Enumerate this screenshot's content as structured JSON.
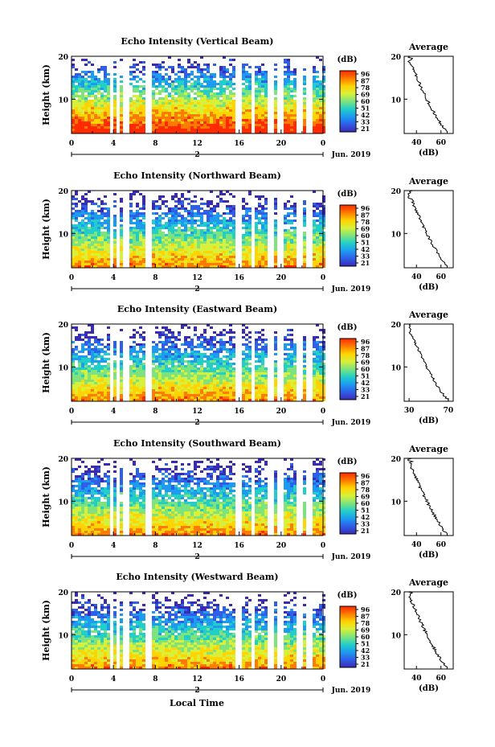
{
  "figure": {
    "shared_xlabel": "Local Time",
    "date_label": "Jun. 2019",
    "day_label": "2",
    "colorbar_unit": "(dB)",
    "avg_title": "Average",
    "avg_xlabel": "(dB)",
    "ylabel": "Height (km)"
  },
  "colorbar": {
    "ticks": [
      "96",
      "87",
      "78",
      "69",
      "60",
      "51",
      "42",
      "33",
      "21"
    ],
    "colors": [
      "#ff2a00",
      "#ff7a00",
      "#ffd400",
      "#d8f03a",
      "#7ee37d",
      "#22cfc8",
      "#1d9bf0",
      "#2f5ee8",
      "#3a2bb7"
    ]
  },
  "chart_data": [
    {
      "type": "heatmap",
      "title": "Echo Intensity (Vertical Beam)",
      "xlabel": "",
      "ylabel": "Height (km)",
      "x_ticks": [
        "0",
        "4",
        "8",
        "12",
        "16",
        "20",
        "0"
      ],
      "y_ticks": [
        "20",
        "10"
      ],
      "xlim": [
        0,
        24
      ],
      "ylim": [
        2,
        20
      ],
      "colorbar_ticks": [
        "96",
        "87",
        "78",
        "69",
        "60",
        "51",
        "42",
        "33",
        "21"
      ],
      "average_profile": {
        "x_ticks": [
          "40",
          "60"
        ],
        "xlim": [
          30,
          70
        ],
        "y_ticks": [
          "20",
          "10"
        ],
        "ylim": [
          2,
          20
        ]
      }
    },
    {
      "type": "heatmap",
      "title": "Echo Intensity (Northward Beam)",
      "xlabel": "",
      "ylabel": "Height (km)",
      "x_ticks": [
        "0",
        "4",
        "8",
        "12",
        "16",
        "20",
        "0"
      ],
      "y_ticks": [
        "20",
        "10"
      ],
      "xlim": [
        0,
        24
      ],
      "ylim": [
        2,
        20
      ],
      "colorbar_ticks": [
        "96",
        "87",
        "78",
        "69",
        "60",
        "51",
        "42",
        "33",
        "21"
      ],
      "average_profile": {
        "x_ticks": [
          "40",
          "60"
        ],
        "xlim": [
          30,
          70
        ],
        "y_ticks": [
          "20",
          "10"
        ],
        "ylim": [
          2,
          20
        ]
      }
    },
    {
      "type": "heatmap",
      "title": "Echo Intensity (Eastward Beam)",
      "xlabel": "",
      "ylabel": "Height (km)",
      "x_ticks": [
        "0",
        "4",
        "8",
        "12",
        "16",
        "20",
        "0"
      ],
      "y_ticks": [
        "20",
        "10"
      ],
      "xlim": [
        0,
        24
      ],
      "ylim": [
        2,
        20
      ],
      "colorbar_ticks": [
        "96",
        "87",
        "78",
        "69",
        "60",
        "51",
        "42",
        "33",
        "21"
      ],
      "average_profile": {
        "x_ticks": [
          "30",
          "70"
        ],
        "xlim": [
          25,
          75
        ],
        "y_ticks": [
          "20",
          "10"
        ],
        "ylim": [
          2,
          20
        ]
      }
    },
    {
      "type": "heatmap",
      "title": "Echo Intensity (Southward Beam)",
      "xlabel": "",
      "ylabel": "Height (km)",
      "x_ticks": [
        "0",
        "4",
        "8",
        "12",
        "16",
        "20",
        "0"
      ],
      "y_ticks": [
        "20",
        "10"
      ],
      "xlim": [
        0,
        24
      ],
      "ylim": [
        2,
        20
      ],
      "colorbar_ticks": [
        "96",
        "87",
        "78",
        "69",
        "60",
        "51",
        "42",
        "33",
        "21"
      ],
      "average_profile": {
        "x_ticks": [
          "40",
          "60"
        ],
        "xlim": [
          30,
          70
        ],
        "y_ticks": [
          "20",
          "10"
        ],
        "ylim": [
          2,
          20
        ]
      }
    },
    {
      "type": "heatmap",
      "title": "Echo Intensity (Westward Beam)",
      "xlabel": "Local Time",
      "ylabel": "Height (km)",
      "x_ticks": [
        "0",
        "4",
        "8",
        "12",
        "16",
        "20",
        "0"
      ],
      "y_ticks": [
        "20",
        "10"
      ],
      "xlim": [
        0,
        24
      ],
      "ylim": [
        2,
        20
      ],
      "colorbar_ticks": [
        "96",
        "87",
        "78",
        "69",
        "60",
        "51",
        "42",
        "33",
        "21"
      ],
      "average_profile": {
        "x_ticks": [
          "40",
          "60"
        ],
        "xlim": [
          30,
          70
        ],
        "y_ticks": [
          "20",
          "10"
        ],
        "ylim": [
          2,
          20
        ]
      }
    }
  ]
}
